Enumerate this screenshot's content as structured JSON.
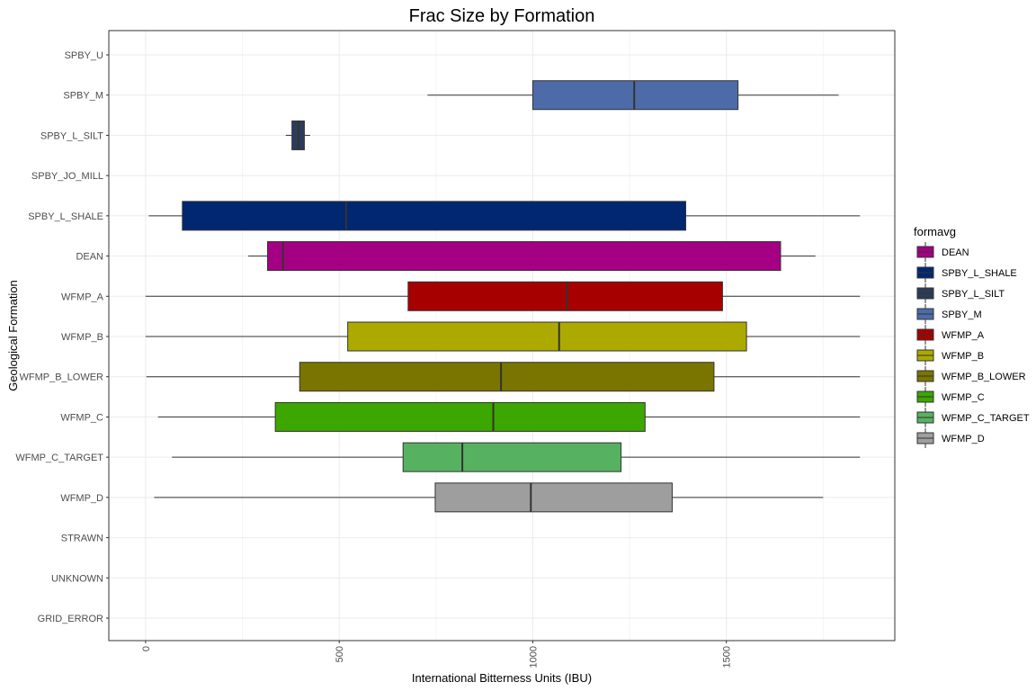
{
  "chart_data": {
    "type": "boxplot",
    "orientation": "horizontal",
    "title": "Frac Size by Formation",
    "xlabel": "International Bitterness Units (IBU)",
    "ylabel": "Geological Formation",
    "xlim": [
      -95,
      1935
    ],
    "x_ticks": [
      0,
      500,
      1000,
      1500
    ],
    "x_tick_labels": [
      "0",
      "500",
      "1000",
      "1500"
    ],
    "grid": true,
    "legend": {
      "title": "formavg",
      "placement": "right",
      "entries": [
        {
          "name": "DEAN",
          "color": "#A50083"
        },
        {
          "name": "SPBY_L_SHALE",
          "color": "#012770"
        },
        {
          "name": "SPBY_L_SILT",
          "color": "#2B3C5A"
        },
        {
          "name": "SPBY_M",
          "color": "#4D6BA8"
        },
        {
          "name": "WFMP_A",
          "color": "#A70000"
        },
        {
          "name": "WFMP_B",
          "color": "#ACAA00"
        },
        {
          "name": "WFMP_B_LOWER",
          "color": "#7A7500"
        },
        {
          "name": "WFMP_C",
          "color": "#3BA700"
        },
        {
          "name": "WFMP_C_TARGET",
          "color": "#56B261"
        },
        {
          "name": "WFMP_D",
          "color": "#9E9E9E"
        }
      ]
    },
    "categories": [
      "SPBY_U",
      "SPBY_M",
      "SPBY_L_SILT",
      "SPBY_JO_MILL",
      "SPBY_L_SHALE",
      "DEAN",
      "WFMP_A",
      "WFMP_B",
      "WFMP_B_LOWER",
      "WFMP_C",
      "WFMP_C_TARGET",
      "WFMP_D",
      "STRAWN",
      "UNKNOWN",
      "GRID_ERROR"
    ],
    "boxes": [
      {
        "category": "SPBY_U",
        "empty": true
      },
      {
        "category": "SPBY_M",
        "whisker_low": 728,
        "q1": 1000,
        "median": 1262,
        "q3": 1530,
        "whisker_high": 1790,
        "color": "#4D6BA8"
      },
      {
        "category": "SPBY_L_SILT",
        "whisker_low": 362,
        "q1": 378,
        "median": 395,
        "q3": 410,
        "whisker_high": 425,
        "color": "#2B3C5A"
      },
      {
        "category": "SPBY_JO_MILL",
        "empty": true
      },
      {
        "category": "SPBY_L_SHALE",
        "whisker_low": 8,
        "q1": 95,
        "median": 518,
        "q3": 1395,
        "whisker_high": 1845,
        "color": "#012770"
      },
      {
        "category": "DEAN",
        "whisker_low": 265,
        "q1": 315,
        "median": 355,
        "q3": 1640,
        "whisker_high": 1730,
        "color": "#A50083"
      },
      {
        "category": "WFMP_A",
        "whisker_low": 0,
        "q1": 678,
        "median": 1088,
        "q3": 1490,
        "whisker_high": 1845,
        "color": "#A70000"
      },
      {
        "category": "WFMP_B",
        "whisker_low": 0,
        "q1": 522,
        "median": 1068,
        "q3": 1552,
        "whisker_high": 1845,
        "color": "#ACAA00"
      },
      {
        "category": "WFMP_B_LOWER",
        "whisker_low": 2,
        "q1": 398,
        "median": 918,
        "q3": 1468,
        "whisker_high": 1845,
        "color": "#7A7500"
      },
      {
        "category": "WFMP_C",
        "whisker_low": 32,
        "q1": 335,
        "median": 898,
        "q3": 1290,
        "whisker_high": 1845,
        "color": "#3BA700"
      },
      {
        "category": "WFMP_C_TARGET",
        "whisker_low": 68,
        "q1": 665,
        "median": 818,
        "q3": 1228,
        "whisker_high": 1845,
        "color": "#56B261"
      },
      {
        "category": "WFMP_D",
        "whisker_low": 22,
        "q1": 748,
        "median": 995,
        "q3": 1360,
        "whisker_high": 1750,
        "color": "#9E9E9E"
      },
      {
        "category": "STRAWN",
        "empty": true
      },
      {
        "category": "UNKNOWN",
        "empty": true
      },
      {
        "category": "GRID_ERROR",
        "empty": true
      }
    ]
  }
}
